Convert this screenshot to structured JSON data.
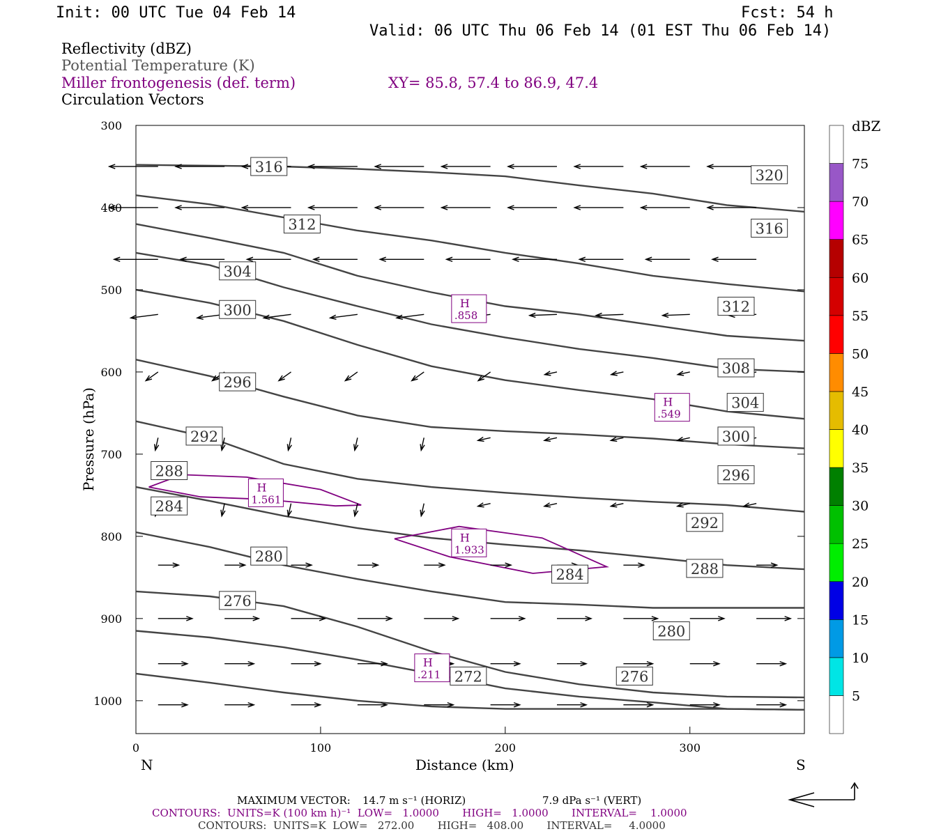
{
  "header": {
    "init": "Init: 00 UTC Tue 04 Feb 14",
    "fcst": "Fcst:   54 h",
    "valid": "Valid: 06 UTC Thu 06 Feb 14 (01 EST Thu 06 Feb 14)"
  },
  "legend": {
    "fields": [
      {
        "label": "Reflectivity (dBZ)",
        "color": "#000000"
      },
      {
        "label": "Potential Temperature (K)",
        "color": "#555555"
      },
      {
        "label": "Miller frontogenesis (def. term)",
        "color": "#800080"
      },
      {
        "label": "Circulation Vectors",
        "color": "#000000"
      }
    ],
    "xy": "XY=  85.8, 57.4 to  86.9, 47.4"
  },
  "chart_data": {
    "type": "contour",
    "xlabel": "Distance (km)",
    "ylabel": "Pressure (hPa)",
    "xlim": [
      0,
      362
    ],
    "ylim": [
      1040,
      300
    ],
    "x_ticks": [
      0,
      100,
      200,
      300
    ],
    "y_ticks": [
      300,
      400,
      500,
      600,
      700,
      800,
      900,
      1000
    ],
    "x_end_labels": {
      "left": "N",
      "right": "S"
    },
    "theta_contours": [
      {
        "label": "316",
        "x": [
          0,
          40,
          80,
          120,
          160,
          200,
          240,
          280,
          320,
          362
        ],
        "p": [
          348,
          349,
          350,
          353,
          357,
          362,
          373,
          383,
          397,
          405
        ]
      },
      {
        "label": "312",
        "x": [
          0,
          40,
          80,
          120,
          160,
          200,
          240,
          280,
          320,
          362
        ],
        "p": [
          385,
          396,
          412,
          428,
          440,
          455,
          468,
          483,
          493,
          502
        ]
      },
      {
        "label": "312",
        "x": [
          0,
          40,
          80,
          120,
          160,
          200,
          240,
          280,
          320,
          362
        ],
        "p": [
          420,
          437,
          455,
          483,
          503,
          520,
          530,
          543,
          556,
          562
        ]
      },
      {
        "label": "308",
        "x": [
          0,
          40,
          80,
          120,
          160,
          200,
          240,
          280,
          320,
          362
        ],
        "p": [
          455,
          470,
          497,
          520,
          542,
          558,
          572,
          583,
          596,
          600
        ]
      },
      {
        "label": "300",
        "x": [
          0,
          40,
          80,
          120,
          160,
          200,
          240,
          280,
          320,
          362
        ],
        "p": [
          500,
          516,
          538,
          567,
          593,
          610,
          622,
          633,
          648,
          657
        ]
      },
      {
        "label": "296",
        "x": [
          0,
          40,
          80,
          120,
          160,
          200,
          240,
          280,
          320,
          362
        ],
        "p": [
          585,
          605,
          630,
          653,
          667,
          672,
          676,
          681,
          688,
          693
        ]
      },
      {
        "label": "292",
        "x": [
          0,
          40,
          80,
          120,
          160,
          200,
          240,
          280,
          320,
          362
        ],
        "p": [
          660,
          680,
          712,
          730,
          740,
          747,
          753,
          758,
          762,
          770
        ]
      },
      {
        "label": "288",
        "x": [
          0,
          40,
          80,
          120,
          160,
          200,
          240,
          280,
          320,
          362
        ],
        "p": [
          740,
          757,
          775,
          790,
          802,
          810,
          817,
          826,
          835,
          840
        ]
      },
      {
        "label": "284",
        "x": [
          0,
          40,
          80,
          120,
          160,
          200,
          240,
          280,
          320,
          362
        ],
        "p": [
          795,
          813,
          835,
          852,
          867,
          880,
          883,
          887,
          887,
          887
        ]
      },
      {
        "label": "280",
        "x": [
          0,
          40,
          80,
          120,
          160,
          200,
          240,
          280,
          320,
          362
        ],
        "p": [
          867,
          873,
          885,
          910,
          940,
          965,
          980,
          990,
          995,
          996
        ]
      },
      {
        "label": "276",
        "x": [
          0,
          40,
          80,
          120,
          160,
          200,
          240,
          280,
          320,
          362
        ],
        "p": [
          915,
          923,
          935,
          950,
          967,
          985,
          995,
          1002,
          1010,
          1011
        ]
      },
      {
        "label": "272",
        "x": [
          0,
          40,
          80,
          120,
          160,
          200,
          240,
          280,
          320,
          362
        ],
        "p": [
          967,
          978,
          990,
          1000,
          1007,
          1010,
          1010,
          1010,
          1010,
          1011
        ]
      }
    ],
    "theta_labels": [
      {
        "text": "316",
        "x": 72,
        "p": 350
      },
      {
        "text": "320",
        "x": 343,
        "p": 360
      },
      {
        "text": "312",
        "x": 90,
        "p": 420
      },
      {
        "text": "316",
        "x": 343,
        "p": 425
      },
      {
        "text": "304",
        "x": 55,
        "p": 477
      },
      {
        "text": "300",
        "x": 55,
        "p": 524
      },
      {
        "text": "312",
        "x": 325,
        "p": 520
      },
      {
        "text": "296",
        "x": 55,
        "p": 612
      },
      {
        "text": "308",
        "x": 325,
        "p": 595
      },
      {
        "text": "304",
        "x": 330,
        "p": 637
      },
      {
        "text": "292",
        "x": 37,
        "p": 678
      },
      {
        "text": "300",
        "x": 325,
        "p": 678
      },
      {
        "text": "288",
        "x": 18,
        "p": 720
      },
      {
        "text": "296",
        "x": 325,
        "p": 725
      },
      {
        "text": "284",
        "x": 18,
        "p": 763
      },
      {
        "text": "292",
        "x": 308,
        "p": 783
      },
      {
        "text": "280",
        "x": 72,
        "p": 824
      },
      {
        "text": "288",
        "x": 308,
        "p": 839
      },
      {
        "text": "284",
        "x": 235,
        "p": 846
      },
      {
        "text": "276",
        "x": 55,
        "p": 878
      },
      {
        "text": "280",
        "x": 290,
        "p": 915
      },
      {
        "text": "272",
        "x": 180,
        "p": 970
      },
      {
        "text": "276",
        "x": 270,
        "p": 970
      }
    ],
    "frontogenesis_contours": [
      {
        "x": [
          7,
          25,
          60,
          100,
          122,
          108,
          70,
          35,
          7
        ],
        "p": [
          740,
          725,
          728,
          743,
          762,
          763,
          755,
          752,
          740
        ]
      },
      {
        "x": [
          140,
          175,
          220,
          248,
          255,
          215,
          170,
          140
        ],
        "p": [
          803,
          788,
          802,
          830,
          837,
          845,
          825,
          803
        ]
      }
    ],
    "frontogenesis_maxima": [
      {
        "letter": "H",
        "value": ".858",
        "x": 180,
        "p": 523
      },
      {
        "letter": "H",
        "value": ".549",
        "x": 290,
        "p": 643
      },
      {
        "letter": "H",
        "value": "1.561",
        "x": 70,
        "p": 747
      },
      {
        "letter": "H",
        "value": "1.933",
        "x": 180,
        "p": 808
      },
      {
        "letter": "H",
        "value": ".211",
        "x": 160,
        "p": 960
      }
    ],
    "contour_line_color": "#444444",
    "frontogenesis_color": "#800080",
    "vector_color": "#000000",
    "color_scale": {
      "title": "dBZ",
      "levels": [
        5,
        10,
        15,
        20,
        25,
        30,
        35,
        40,
        45,
        50,
        55,
        60,
        65,
        70,
        75
      ],
      "colors": [
        "#ffffff",
        "#00e5e5",
        "#009ae5",
        "#0000e5",
        "#00ee00",
        "#00c000",
        "#008000",
        "#ffff00",
        "#e5bc00",
        "#ff8c00",
        "#ff0000",
        "#d40000",
        "#b50000",
        "#ff00ff",
        "#9857c7",
        "#ffffff"
      ]
    }
  },
  "footer": {
    "max_vector_prefix": "MAXIMUM VECTOR:",
    "max_vector_horiz": "14.7 m s⁻¹ (HORIZ)",
    "max_vector_vert": "7.9 dPa s⁻¹ (VERT)",
    "contours_fronto": "CONTOURS:  UNITS=K (100 km h)⁻¹  LOW=   1.0000       HIGH=   1.0000       INTERVAL=    1.0000",
    "contours_theta": "CONTOURS:  UNITS=K  LOW=   272.00       HIGH=   408.00       INTERVAL=     4.0000"
  }
}
